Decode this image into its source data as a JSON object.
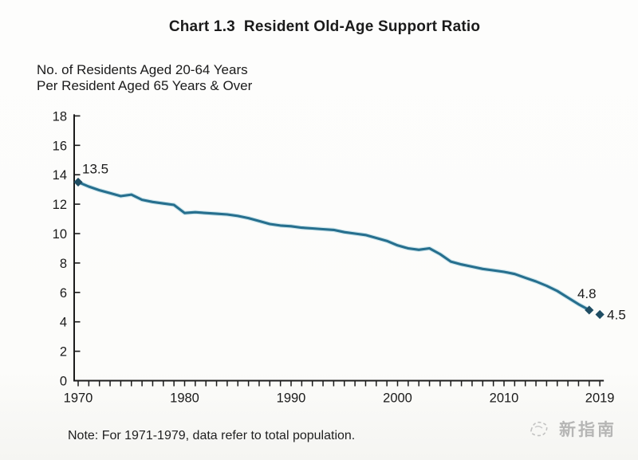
{
  "title": "Chart 1.3  Resident Old-Age Support Ratio",
  "axis_title_line1": "No. of Residents Aged 20-64 Years",
  "axis_title_line2": "Per Resident Aged 65 Years & Over",
  "note": "Note: For 1971-1979, data refer to total population.",
  "watermark": "新指南",
  "chart_data": {
    "type": "line",
    "title": "Chart 1.3  Resident Old-Age Support Ratio",
    "ylabel": "No. of Residents Aged 20-64 Years Per Resident Aged 65 Years & Over",
    "xlabel": "",
    "grid": false,
    "legend": null,
    "xlim": [
      1970,
      2019
    ],
    "ylim": [
      0,
      18
    ],
    "y_ticks": [
      0,
      2,
      4,
      6,
      8,
      10,
      12,
      14,
      16,
      18
    ],
    "x_tick_labels": [
      {
        "x": 1970,
        "label": "1970"
      },
      {
        "x": 1980,
        "label": "1980"
      },
      {
        "x": 1990,
        "label": "1990"
      },
      {
        "x": 2000,
        "label": "2000"
      },
      {
        "x": 2010,
        "label": "2010"
      },
      {
        "x": 2019,
        "label": "2019"
      }
    ],
    "series_name": "Resident old-age support ratio",
    "years": [
      1970,
      1971,
      1972,
      1973,
      1974,
      1975,
      1976,
      1977,
      1978,
      1979,
      1980,
      1981,
      1982,
      1983,
      1984,
      1985,
      1986,
      1987,
      1988,
      1989,
      1990,
      1991,
      1992,
      1993,
      1994,
      1995,
      1996,
      1997,
      1998,
      1999,
      2000,
      2001,
      2002,
      2003,
      2004,
      2005,
      2006,
      2007,
      2008,
      2009,
      2010,
      2011,
      2012,
      2013,
      2014,
      2015,
      2016,
      2017,
      2018
    ],
    "values": [
      13.5,
      13.2,
      12.95,
      12.75,
      12.55,
      12.65,
      12.3,
      12.15,
      12.05,
      11.95,
      11.4,
      11.45,
      11.4,
      11.35,
      11.3,
      11.2,
      11.05,
      10.85,
      10.65,
      10.55,
      10.5,
      10.4,
      10.35,
      10.3,
      10.25,
      10.1,
      10.0,
      9.9,
      9.7,
      9.5,
      9.2,
      9.0,
      8.9,
      9.0,
      8.6,
      8.1,
      7.9,
      7.75,
      7.6,
      7.5,
      7.4,
      7.25,
      7.0,
      6.75,
      6.45,
      6.1,
      5.65,
      5.2,
      4.8
    ],
    "extra_point": {
      "x": 2019,
      "y": 4.5
    },
    "annotations": [
      {
        "x": 1970,
        "y": 13.5,
        "label": "13.5",
        "position": "above-right"
      },
      {
        "x": 2018,
        "y": 4.8,
        "label": "4.8",
        "position": "above"
      },
      {
        "x": 2019,
        "y": 4.5,
        "label": "4.5",
        "position": "right"
      }
    ],
    "colors": {
      "line": "#266f8e",
      "line_halo": "#9ccfde",
      "marker": "#1f4d63",
      "axis": "#1b1b1b",
      "text": "#1b1b1b"
    }
  }
}
